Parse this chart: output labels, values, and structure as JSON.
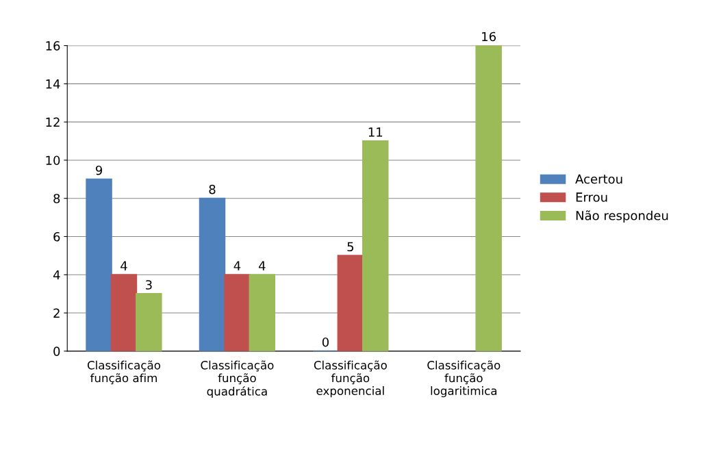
{
  "chart_data": {
    "type": "bar",
    "categories": [
      "Classificação\nfunção afim",
      "Classificação\nfunção\nquadrática",
      "Classificação\nfunção\nexponencial",
      "Classificação\nfunção\nlogaritimica"
    ],
    "series": [
      {
        "name": "Acertou",
        "color": "#4f81bd",
        "values": [
          9,
          8,
          0,
          null
        ]
      },
      {
        "name": "Errou",
        "color": "#c0504d",
        "values": [
          4,
          4,
          5,
          null
        ]
      },
      {
        "name": "Não respondeu",
        "color": "#9bbb59",
        "values": [
          3,
          4,
          11,
          16
        ]
      }
    ],
    "ylim": [
      0,
      16
    ],
    "yticks": [
      0,
      2,
      4,
      6,
      8,
      10,
      12,
      14,
      16
    ],
    "grid": "y",
    "legend": "right",
    "data_labels": true
  }
}
